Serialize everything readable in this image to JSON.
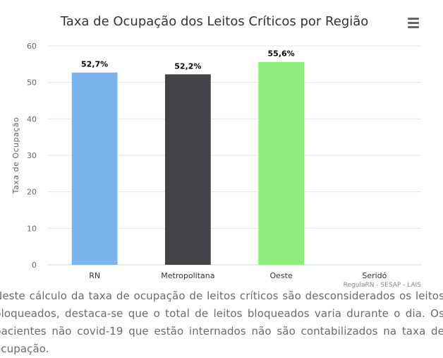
{
  "note": "Neste cálculo da taxa de ocupação de leitos críticos são desconsiderados os leitos bloqueados, destaca-se que o total de leitos bloqueados varia durante o dia. Os pacientes não covid-19 que estão internados não são contabilizados na taxa de ocupação.",
  "menu": {
    "icon": "hamburger-menu-icon"
  },
  "chart_data": {
    "type": "bar",
    "title": "Taxa de Ocupação dos Leitos Críticos por Região",
    "ylabel": "Taxa de Ocupação",
    "xlabel": "",
    "categories": [
      "RN",
      "Metropolitana",
      "Oeste",
      "Seridó"
    ],
    "values": [
      52.7,
      52.2,
      55.6,
      null
    ],
    "data_labels": [
      "52,7%",
      "52,2%",
      "55,6%",
      ""
    ],
    "colors": [
      "#7cb5ec",
      "#434348",
      "#90ed7d",
      "#f7a35c"
    ],
    "ylim": [
      0,
      60
    ],
    "yticks": [
      0,
      10,
      20,
      30,
      40,
      50,
      60
    ],
    "grid": true,
    "credits": "RegulaRN - SESAP - LAIS"
  }
}
